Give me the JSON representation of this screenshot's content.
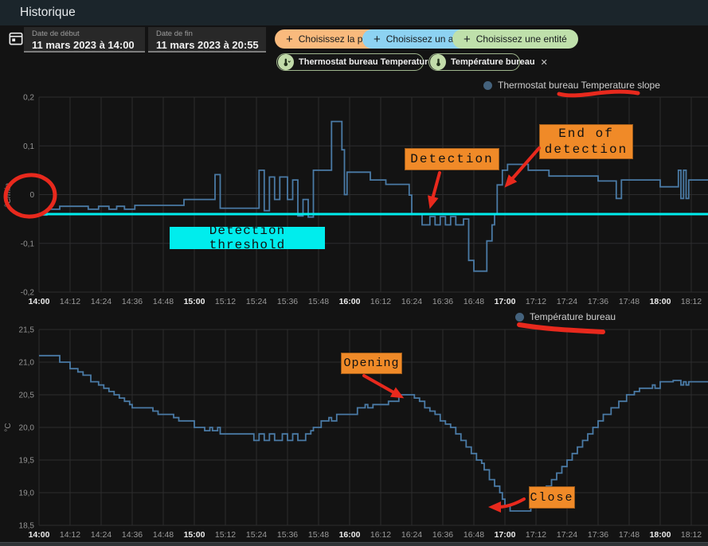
{
  "header": {
    "title": "Historique"
  },
  "toolbar": {
    "date_start": {
      "label": "Date de début",
      "value": "11 mars 2023 à 14:00"
    },
    "date_end": {
      "label": "Date de fin",
      "value": "11 mars 2023 à 20:55"
    },
    "buttons": [
      {
        "label": "Choisissez la pièce",
        "plus": "+",
        "color": "#f9ba7d"
      },
      {
        "label": "Choisissez un appareil",
        "plus": "+",
        "color": "#8dd2f2"
      },
      {
        "label": "Choisissez une entité",
        "plus": "+",
        "color": "#bfe0ab"
      }
    ],
    "chips": [
      {
        "label": "Thermostat bureau Temperature slope",
        "close": "✕"
      },
      {
        "label": "Température bureau",
        "close": "✕"
      }
    ]
  },
  "annotations": {
    "detection": "Detection",
    "end_of_detection_line1": "End of",
    "end_of_detection_line2": "detection",
    "detection_threshold": "Detection threshold",
    "opening": "Opening",
    "close": "Close",
    "box_color": "#f08a28",
    "threshold_box_color": "#00eded",
    "red_color": "#e8291d"
  },
  "chart_data": [
    {
      "type": "line",
      "step": true,
      "legend": "Thermostat bureau Temperature slope",
      "ylabel": "°C/min",
      "ylim": [
        -0.2,
        0.2
      ],
      "yticks": [
        {
          "v": 0.2,
          "label": "0,2"
        },
        {
          "v": 0.1,
          "label": "0,1"
        },
        {
          "v": 0,
          "label": "0"
        },
        {
          "v": -0.1,
          "label": "-0,1"
        },
        {
          "v": -0.2,
          "label": "-0,2"
        }
      ],
      "x_tick_interval_min": 12,
      "x_tick_labels": [
        "14:00",
        "14:12",
        "14:24",
        "14:36",
        "14:48",
        "15:00",
        "15:12",
        "15:24",
        "15:36",
        "15:48",
        "16:00",
        "16:12",
        "16:24",
        "16:36",
        "16:48",
        "17:00",
        "17:12",
        "17:24",
        "17:36",
        "17:48",
        "18:00",
        "18:12"
      ],
      "series_color": "#4a7aa5",
      "threshold": {
        "value": -0.04,
        "label": "Detection threshold",
        "color": "#00eded"
      },
      "points_min_value": [
        [
          0,
          -0.042
        ],
        [
          3,
          -0.03
        ],
        [
          8,
          -0.024
        ],
        [
          19,
          -0.03
        ],
        [
          23,
          -0.024
        ],
        [
          27,
          -0.03
        ],
        [
          30,
          -0.024
        ],
        [
          33,
          -0.03
        ],
        [
          37,
          -0.022
        ],
        [
          56,
          -0.01
        ],
        [
          68,
          0.041
        ],
        [
          70,
          -0.028
        ],
        [
          85,
          0.05
        ],
        [
          87,
          -0.033
        ],
        [
          89,
          0.036
        ],
        [
          91,
          -0.01
        ],
        [
          93,
          0.036
        ],
        [
          96,
          -0.01
        ],
        [
          98,
          0.03
        ],
        [
          100,
          -0.044
        ],
        [
          102,
          -0.01
        ],
        [
          104,
          -0.046
        ],
        [
          106,
          0.05
        ],
        [
          112,
          0.05
        ],
        [
          113,
          0.15
        ],
        [
          117,
          0.092
        ],
        [
          118,
          0
        ],
        [
          119,
          0.046
        ],
        [
          128,
          0.03
        ],
        [
          134,
          0.021
        ],
        [
          143,
          -0.001
        ],
        [
          144,
          -0.04
        ],
        [
          148,
          -0.062
        ],
        [
          151,
          -0.045
        ],
        [
          153,
          -0.062
        ],
        [
          155,
          -0.045
        ],
        [
          157,
          -0.062
        ],
        [
          159,
          -0.045
        ],
        [
          161,
          -0.062
        ],
        [
          164,
          -0.05
        ],
        [
          166,
          -0.135
        ],
        [
          168,
          -0.157
        ],
        [
          173,
          -0.095
        ],
        [
          175,
          -0.062
        ],
        [
          176,
          -0.04
        ],
        [
          177,
          0.02
        ],
        [
          179,
          0.05
        ],
        [
          181,
          0.062
        ],
        [
          189,
          0.05
        ],
        [
          197,
          0.038
        ],
        [
          216,
          0.028
        ],
        [
          223,
          -0.008
        ],
        [
          225,
          0.03
        ],
        [
          240,
          0.016
        ],
        [
          247,
          0.05
        ],
        [
          248,
          -0.008
        ],
        [
          249,
          0.05
        ],
        [
          250,
          -0.008
        ],
        [
          251,
          0.03
        ],
        [
          258,
          0.03
        ]
      ]
    },
    {
      "type": "line",
      "step": true,
      "legend": "Température bureau",
      "ylabel": "°C",
      "ylim": [
        18.5,
        21.5
      ],
      "yticks": [
        {
          "v": 21.5,
          "label": "21,5"
        },
        {
          "v": 21.0,
          "label": "21,0"
        },
        {
          "v": 20.5,
          "label": "20,5"
        },
        {
          "v": 20.0,
          "label": "20,0"
        },
        {
          "v": 19.5,
          "label": "19,5"
        },
        {
          "v": 19.0,
          "label": "19,0"
        },
        {
          "v": 18.5,
          "label": "18,5"
        }
      ],
      "x_tick_interval_min": 12,
      "x_tick_labels": [
        "14:00",
        "14:12",
        "14:24",
        "14:36",
        "14:48",
        "15:00",
        "15:12",
        "15:24",
        "15:36",
        "15:48",
        "16:00",
        "16:12",
        "16:24",
        "16:36",
        "16:48",
        "17:00",
        "17:12",
        "17:24",
        "17:36",
        "17:48",
        "18:00",
        "18:12"
      ],
      "series_color": "#4a7aa5",
      "points_min_value": [
        [
          0,
          21.1
        ],
        [
          8,
          21.0
        ],
        [
          12,
          20.9
        ],
        [
          15,
          20.85
        ],
        [
          17,
          20.8
        ],
        [
          20,
          20.7
        ],
        [
          23,
          20.65
        ],
        [
          25,
          20.6
        ],
        [
          27,
          20.55
        ],
        [
          29,
          20.5
        ],
        [
          31,
          20.45
        ],
        [
          33,
          20.4
        ],
        [
          35,
          20.35
        ],
        [
          36,
          20.3
        ],
        [
          44,
          20.25
        ],
        [
          46,
          20.2
        ],
        [
          52,
          20.15
        ],
        [
          54,
          20.1
        ],
        [
          60,
          20.0
        ],
        [
          64,
          19.95
        ],
        [
          66,
          20.0
        ],
        [
          67,
          19.95
        ],
        [
          69,
          20.0
        ],
        [
          70,
          19.9
        ],
        [
          83,
          19.8
        ],
        [
          85,
          19.9
        ],
        [
          87,
          19.8
        ],
        [
          89,
          19.9
        ],
        [
          91,
          19.8
        ],
        [
          94,
          19.9
        ],
        [
          96,
          19.8
        ],
        [
          98,
          19.9
        ],
        [
          100,
          19.8
        ],
        [
          103,
          19.9
        ],
        [
          105,
          19.95
        ],
        [
          106,
          20.0
        ],
        [
          109,
          20.1
        ],
        [
          112,
          20.15
        ],
        [
          113,
          20.1
        ],
        [
          115,
          20.2
        ],
        [
          123,
          20.3
        ],
        [
          126,
          20.35
        ],
        [
          127,
          20.3
        ],
        [
          129,
          20.35
        ],
        [
          135,
          20.4
        ],
        [
          139,
          20.5
        ],
        [
          145,
          20.45
        ],
        [
          147,
          20.4
        ],
        [
          149,
          20.3
        ],
        [
          151,
          20.25
        ],
        [
          153,
          20.2
        ],
        [
          155,
          20.1
        ],
        [
          157,
          20.05
        ],
        [
          159,
          20.0
        ],
        [
          161,
          19.9
        ],
        [
          163,
          19.8
        ],
        [
          165,
          19.7
        ],
        [
          167,
          19.6
        ],
        [
          169,
          19.5
        ],
        [
          171,
          19.45
        ],
        [
          172,
          19.35
        ],
        [
          174,
          19.2
        ],
        [
          176,
          19.1
        ],
        [
          178,
          19.0
        ],
        [
          179,
          18.9
        ],
        [
          180,
          18.8
        ],
        [
          182,
          18.72
        ],
        [
          190,
          18.78
        ],
        [
          193,
          18.9
        ],
        [
          194,
          19.0
        ],
        [
          196,
          19.1
        ],
        [
          198,
          19.2
        ],
        [
          200,
          19.3
        ],
        [
          202,
          19.4
        ],
        [
          204,
          19.5
        ],
        [
          206,
          19.6
        ],
        [
          208,
          19.7
        ],
        [
          210,
          19.8
        ],
        [
          212,
          19.9
        ],
        [
          214,
          20.0
        ],
        [
          216,
          20.1
        ],
        [
          218,
          20.2
        ],
        [
          221,
          20.3
        ],
        [
          224,
          20.4
        ],
        [
          227,
          20.5
        ],
        [
          230,
          20.55
        ],
        [
          232,
          20.6
        ],
        [
          237,
          20.65
        ],
        [
          238,
          20.6
        ],
        [
          240,
          20.7
        ],
        [
          245,
          20.72
        ],
        [
          248,
          20.65
        ],
        [
          249,
          20.7
        ],
        [
          250,
          20.65
        ],
        [
          251,
          20.7
        ],
        [
          258,
          20.7
        ]
      ]
    }
  ]
}
